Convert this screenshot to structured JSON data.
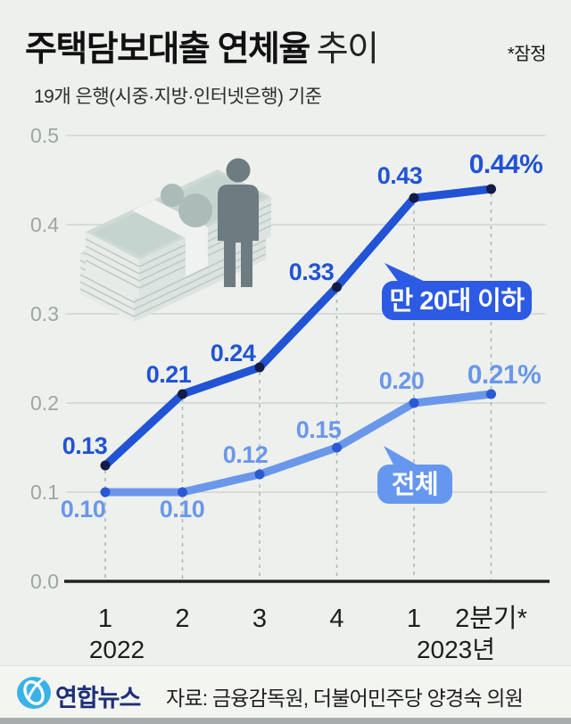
{
  "header": {
    "title_bold": "주택담보대출 연체율",
    "title_light": "추이",
    "provisional_note": "*잠정",
    "subtitle": "19개 은행(시중·지방·인터넷은행) 기준"
  },
  "chart_data": {
    "type": "line",
    "title": "주택담보대출 연체율 추이",
    "unit": "%",
    "x_tick_labels": [
      "1",
      "2",
      "3",
      "4",
      "1",
      "2분기*"
    ],
    "year_labels": [
      "2022",
      "2023년"
    ],
    "y_ticks": [
      0,
      0.1,
      0.2,
      0.3,
      0.4,
      0.5
    ],
    "ylim": [
      0,
      0.5
    ],
    "grid": "horizontal",
    "legend_position": "inline-bubbles",
    "series": [
      {
        "name": "만 20대 이하",
        "values": [
          0.13,
          0.21,
          0.24,
          0.33,
          0.43,
          0.44
        ],
        "point_labels": [
          "0.13",
          "0.21",
          "0.24",
          "0.33",
          "0.43",
          "0.44%"
        ],
        "color": "#2153d4",
        "dot_color": "#141b47",
        "bubble_color": "#2c5ae2"
      },
      {
        "name": "전체",
        "values": [
          0.1,
          0.1,
          0.12,
          0.15,
          0.2,
          0.21
        ],
        "point_labels": [
          "0.10",
          "0.10",
          "0.12",
          "0.15",
          "0.20",
          "0.21%"
        ],
        "color": "#6b97ea",
        "dot_color": "#2b59d3",
        "bubble_color": "#6597ee"
      }
    ]
  },
  "footer": {
    "logo_text": "연합뉴스",
    "source": "자료: 금융감독원, 더불어민주당 양경숙 의원"
  },
  "colors": {
    "background": "#edf0ec",
    "axis": "#1f2422",
    "gridline": "#c8d0cd",
    "dashed_guide": "#a9b9b6",
    "y_tick_text": "#9ca6a3",
    "x_tick_text": "#1d1d1d",
    "brand_blue": "#1c2f78",
    "logo_blue": "#3ab2e8"
  }
}
